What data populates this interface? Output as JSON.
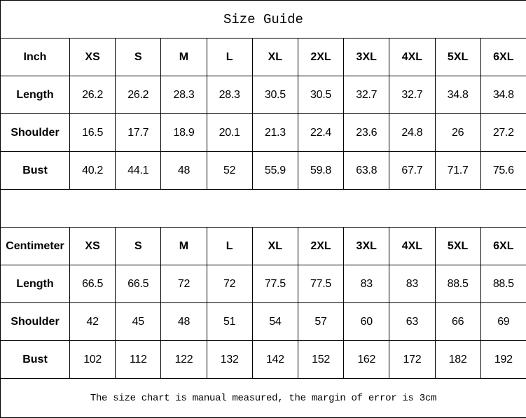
{
  "title": "Size Guide",
  "sizes": [
    "XS",
    "S",
    "M",
    "L",
    "XL",
    "2XL",
    "3XL",
    "4XL",
    "5XL",
    "6XL"
  ],
  "inch_table": {
    "unit_label": "Inch",
    "rows": [
      {
        "label": "Length",
        "values": [
          "26.2",
          "26.2",
          "28.3",
          "28.3",
          "30.5",
          "30.5",
          "32.7",
          "32.7",
          "34.8",
          "34.8"
        ]
      },
      {
        "label": "Shoulder",
        "values": [
          "16.5",
          "17.7",
          "18.9",
          "20.1",
          "21.3",
          "22.4",
          "23.6",
          "24.8",
          "26",
          "27.2"
        ]
      },
      {
        "label": "Bust",
        "values": [
          "40.2",
          "44.1",
          "48",
          "52",
          "55.9",
          "59.8",
          "63.8",
          "67.7",
          "71.7",
          "75.6"
        ]
      }
    ]
  },
  "cm_table": {
    "unit_label": "Centimeter",
    "rows": [
      {
        "label": "Length",
        "values": [
          "66.5",
          "66.5",
          "72",
          "72",
          "77.5",
          "77.5",
          "83",
          "83",
          "88.5",
          "88.5"
        ]
      },
      {
        "label": "Shoulder",
        "values": [
          "42",
          "45",
          "48",
          "51",
          "54",
          "57",
          "60",
          "63",
          "66",
          "69"
        ]
      },
      {
        "label": "Bust",
        "values": [
          "102",
          "112",
          "122",
          "132",
          "142",
          "152",
          "162",
          "172",
          "182",
          "192"
        ]
      }
    ]
  },
  "note": "The size chart is manual measured, the margin of error is 3cm"
}
